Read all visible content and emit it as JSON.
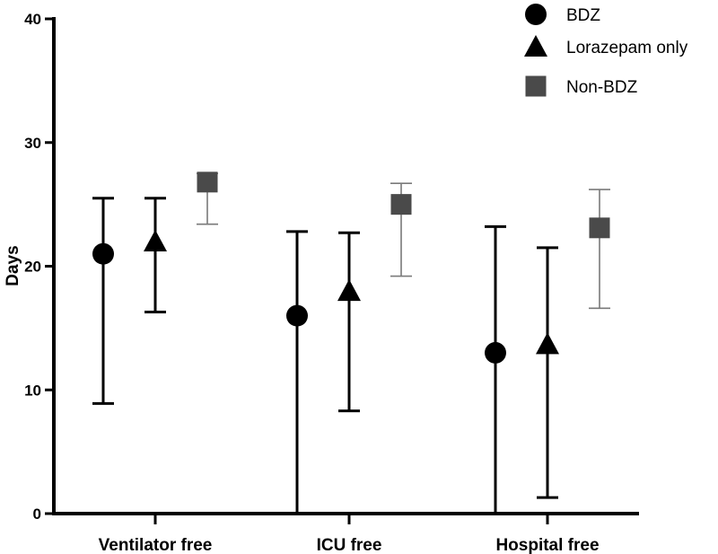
{
  "chart_data": {
    "type": "scatter",
    "title": "",
    "xlabel": "",
    "ylabel": "Days",
    "ylim": [
      0,
      40
    ],
    "yticks": [
      0,
      10,
      20,
      30,
      40
    ],
    "categories": [
      "Ventilator free",
      "ICU free",
      "Hospital free"
    ],
    "series": [
      {
        "name": "BDZ",
        "marker": "circle",
        "color": "#000000",
        "values": [
          21,
          16,
          13
        ],
        "lower": [
          8.9,
          0,
          0
        ],
        "upper": [
          25.5,
          22.8,
          23.2
        ]
      },
      {
        "name": "Lorazepam only",
        "marker": "triangle",
        "color": "#000000",
        "values": [
          22,
          18,
          13.7
        ],
        "lower": [
          16.3,
          8.3,
          1.3
        ],
        "upper": [
          25.5,
          22.7,
          21.5
        ]
      },
      {
        "name": "Non-BDZ",
        "marker": "square",
        "color": "#4a4a4a",
        "values": [
          26.8,
          25,
          23.1
        ],
        "lower": [
          23.4,
          19.2,
          16.6
        ],
        "upper": [
          27.5,
          26.7,
          26.2
        ]
      }
    ]
  }
}
